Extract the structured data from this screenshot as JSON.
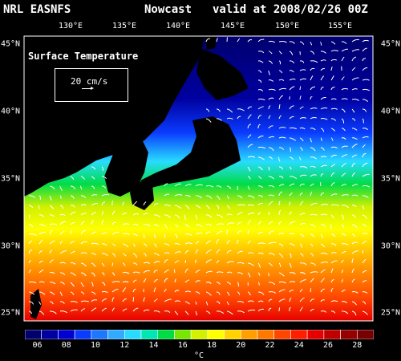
{
  "header": {
    "source": "NRL EASNFS",
    "mode": "Nowcast",
    "valid": "valid at 2008/02/26 00Z"
  },
  "panel": {
    "title": "Surface Temperature",
    "scale_label": "20 cm/s"
  },
  "axes": {
    "lon_labels": [
      "130°E",
      "135°E",
      "140°E",
      "145°E",
      "150°E",
      "155°E"
    ],
    "lat_labels": [
      "45°N",
      "40°N",
      "35°N",
      "30°N",
      "25°N"
    ]
  },
  "colorbar": {
    "tick_labels": [
      "06",
      "08",
      "10",
      "12",
      "14",
      "16",
      "18",
      "20",
      "22",
      "24",
      "26",
      "28"
    ],
    "unit": "°C",
    "colors": [
      "#00006e",
      "#0000a0",
      "#0000d2",
      "#0a3cff",
      "#1e78ff",
      "#32aaff",
      "#28dcff",
      "#00e6b4",
      "#00dc46",
      "#78e600",
      "#d2f000",
      "#ffff00",
      "#ffd200",
      "#ffa000",
      "#ff7800",
      "#ff4600",
      "#ff1e00",
      "#e60000",
      "#be0000",
      "#960000",
      "#780000"
    ]
  }
}
